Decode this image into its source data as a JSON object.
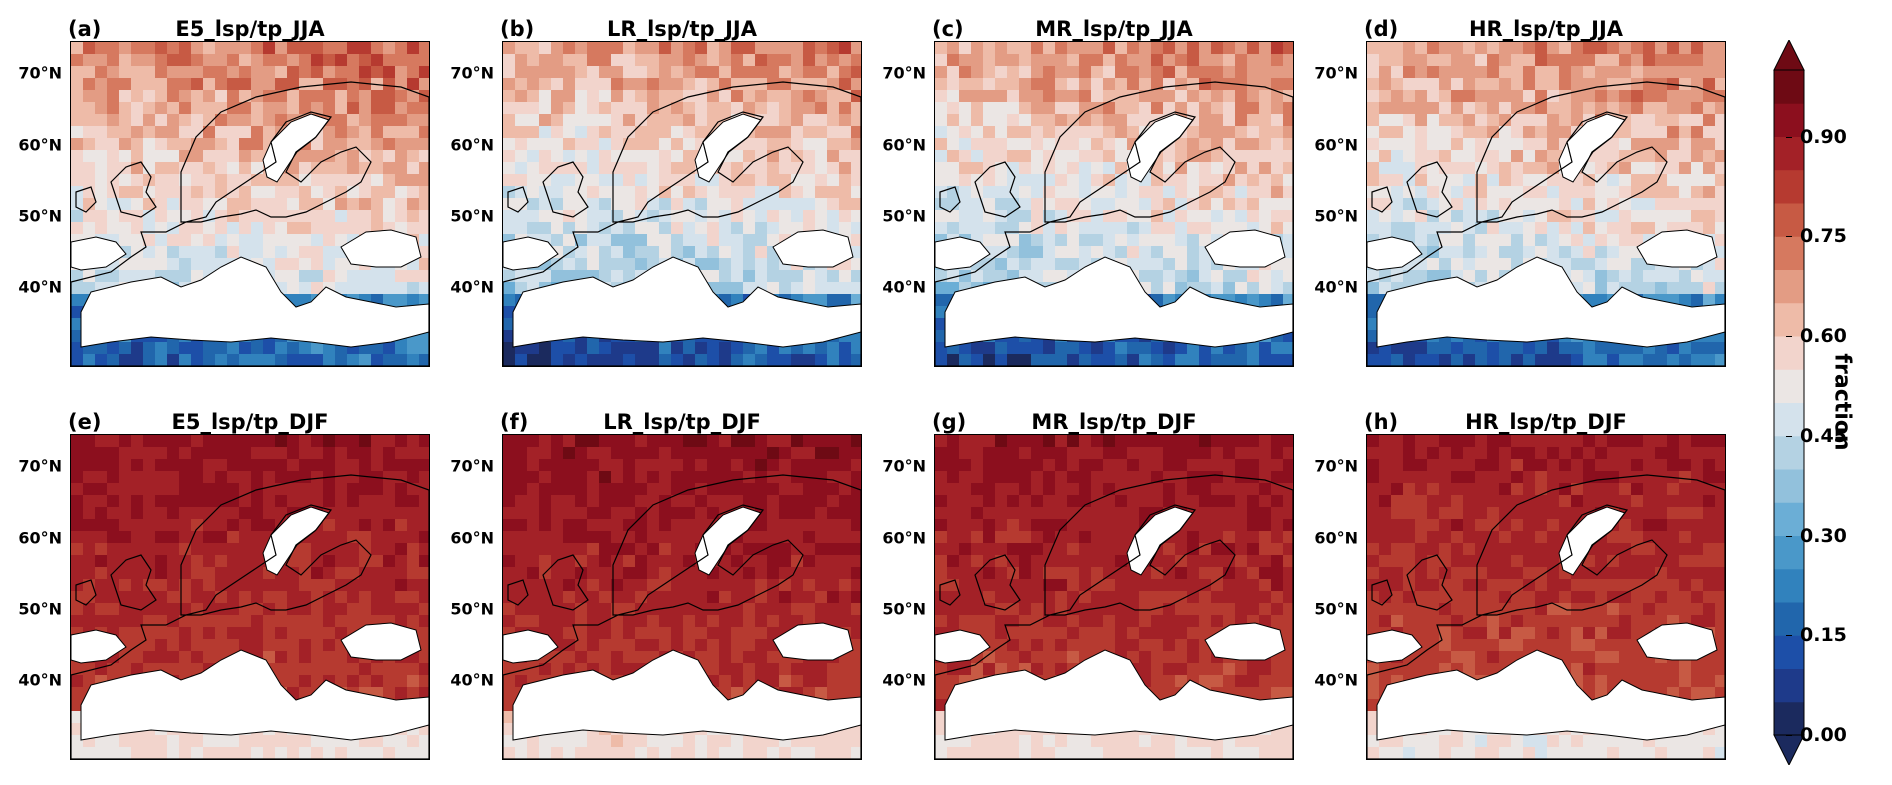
{
  "figure": {
    "panels": [
      {
        "label": "(a)",
        "title": "E5_lsp/tp_JJA",
        "season": "JJA",
        "base": 0.58
      },
      {
        "label": "(b)",
        "title": "LR_lsp/tp_JJA",
        "season": "JJA",
        "base": 0.53
      },
      {
        "label": "(c)",
        "title": "MR_lsp/tp_JJA",
        "season": "JJA",
        "base": 0.54
      },
      {
        "label": "(d)",
        "title": "HR_lsp/tp_JJA",
        "season": "JJA",
        "base": 0.55
      },
      {
        "label": "(e)",
        "title": "E5_lsp/tp_DJF",
        "season": "DJF",
        "base": 0.88
      },
      {
        "label": "(f)",
        "title": "LR_lsp/tp_DJF",
        "season": "DJF",
        "base": 0.89
      },
      {
        "label": "(g)",
        "title": "MR_lsp/tp_DJF",
        "season": "DJF",
        "base": 0.88
      },
      {
        "label": "(h)",
        "title": "HR_lsp/tp_DJF",
        "season": "DJF",
        "base": 0.86
      }
    ],
    "lat_labels": [
      "70°N",
      "60°N",
      "50°N",
      "40°N"
    ],
    "colorbar": {
      "label": "fraction",
      "ticks": [
        "0.00",
        "0.15",
        "0.30",
        "0.45",
        "0.60",
        "0.75",
        "0.90"
      ],
      "levels": 20,
      "colors": [
        "#1b2a5e",
        "#1e3a8a",
        "#1d4fa8",
        "#2166ac",
        "#3182bd",
        "#4a98c9",
        "#6baed6",
        "#92c1dc",
        "#b4d2e3",
        "#d4e2ec",
        "#ebe6e4",
        "#f2d4cc",
        "#eebba8",
        "#e39c84",
        "#d6795f",
        "#c75a44",
        "#b63a30",
        "#a32127",
        "#8c0f1e",
        "#6e0a14"
      ]
    }
  }
}
